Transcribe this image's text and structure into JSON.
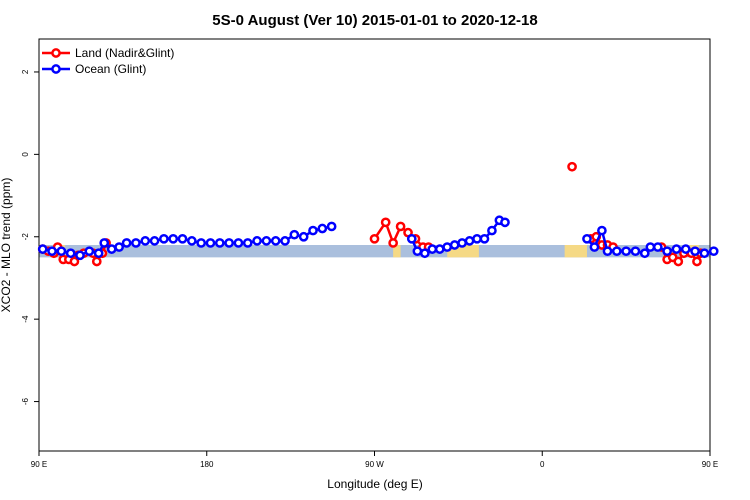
{
  "chart_data": {
    "type": "line",
    "title": "5S-0 August (Ver 10)   2015-01-01 to 2020-12-18",
    "xlabel": "Longitude (deg E)",
    "ylabel": "XCO2 - MLO trend (ppm)",
    "xlim": [
      90,
      450
    ],
    "ylim": [
      -7.2,
      2.8
    ],
    "x_ticks": [
      {
        "value": 90,
        "label": "90 E"
      },
      {
        "value": 180,
        "label": "180"
      },
      {
        "value": 270,
        "label": "90 W"
      },
      {
        "value": 360,
        "label": "0"
      },
      {
        "value": 450,
        "label": "90 E"
      }
    ],
    "y_ticks": [
      {
        "value": 2,
        "label": "2"
      },
      {
        "value": 0,
        "label": "0"
      },
      {
        "value": -2,
        "label": "-2"
      },
      {
        "value": -4,
        "label": "-4"
      },
      {
        "value": -6,
        "label": "-6"
      }
    ],
    "legend_position": "top-left",
    "land_sea_band": {
      "y_range": [
        -2.5,
        -2.2
      ],
      "ocean_color": "#aabfdd",
      "land_color": "#f5d985",
      "land_ranges": [
        [
          101,
          104
        ],
        [
          280,
          284
        ],
        [
          309,
          326
        ],
        [
          372,
          384
        ],
        [
          439,
          444
        ]
      ]
    },
    "series": [
      {
        "name": "Land (Nadir&Glint)",
        "color": "#ff0000",
        "points": [
          [
            92,
            -2.3
          ],
          [
            95,
            -2.35
          ],
          [
            98,
            -2.4
          ],
          [
            100,
            -2.25
          ],
          [
            103,
            -2.55
          ],
          [
            106,
            -2.55
          ],
          [
            109,
            -2.6
          ],
          [
            111,
            -2.45
          ],
          [
            114,
            -2.4
          ],
          [
            119,
            -2.4
          ],
          [
            121,
            -2.6
          ],
          [
            124,
            -2.4
          ],
          [
            126,
            -2.15
          ],
          [
            270,
            -2.05
          ],
          [
            276,
            -1.65
          ],
          [
            280,
            -2.15
          ],
          [
            284,
            -1.75
          ],
          [
            288,
            -1.9
          ],
          [
            292,
            -2.05
          ],
          [
            296,
            -2.25
          ],
          [
            299,
            -2.25
          ],
          [
            376,
            -0.3
          ],
          [
            386,
            -2.05
          ],
          [
            389,
            -2.0
          ],
          [
            392,
            -2.2
          ],
          [
            395,
            -2.2
          ],
          [
            398,
            -2.25
          ],
          [
            424,
            -2.25
          ],
          [
            427,
            -2.55
          ],
          [
            430,
            -2.5
          ],
          [
            433,
            -2.6
          ],
          [
            436,
            -2.4
          ],
          [
            440,
            -2.4
          ],
          [
            443,
            -2.6
          ],
          [
            445,
            -2.4
          ]
        ]
      },
      {
        "name": "Ocean (Glint)",
        "color": "#0000ff",
        "points": [
          [
            92,
            -2.3
          ],
          [
            97,
            -2.35
          ],
          [
            102,
            -2.35
          ],
          [
            107,
            -2.4
          ],
          [
            112,
            -2.45
          ],
          [
            117,
            -2.35
          ],
          [
            122,
            -2.4
          ],
          [
            125,
            -2.15
          ],
          [
            129,
            -2.3
          ],
          [
            133,
            -2.25
          ],
          [
            137,
            -2.15
          ],
          [
            142,
            -2.15
          ],
          [
            147,
            -2.1
          ],
          [
            152,
            -2.1
          ],
          [
            157,
            -2.05
          ],
          [
            162,
            -2.05
          ],
          [
            167,
            -2.05
          ],
          [
            172,
            -2.1
          ],
          [
            177,
            -2.15
          ],
          [
            182,
            -2.15
          ],
          [
            187,
            -2.15
          ],
          [
            192,
            -2.15
          ],
          [
            197,
            -2.15
          ],
          [
            202,
            -2.15
          ],
          [
            207,
            -2.1
          ],
          [
            212,
            -2.1
          ],
          [
            217,
            -2.1
          ],
          [
            222,
            -2.1
          ],
          [
            227,
            -1.95
          ],
          [
            232,
            -2.0
          ],
          [
            237,
            -1.85
          ],
          [
            242,
            -1.8
          ],
          [
            247,
            -1.75
          ],
          [
            290,
            -2.05
          ],
          [
            293,
            -2.35
          ],
          [
            297,
            -2.4
          ],
          [
            301,
            -2.3
          ],
          [
            305,
            -2.3
          ],
          [
            309,
            -2.25
          ],
          [
            313,
            -2.2
          ],
          [
            317,
            -2.15
          ],
          [
            321,
            -2.1
          ],
          [
            325,
            -2.05
          ],
          [
            329,
            -2.05
          ],
          [
            333,
            -1.85
          ],
          [
            337,
            -1.6
          ],
          [
            340,
            -1.65
          ],
          [
            384,
            -2.05
          ],
          [
            388,
            -2.25
          ],
          [
            392,
            -1.85
          ],
          [
            395,
            -2.35
          ],
          [
            400,
            -2.35
          ],
          [
            405,
            -2.35
          ],
          [
            410,
            -2.35
          ],
          [
            415,
            -2.4
          ],
          [
            418,
            -2.25
          ],
          [
            422,
            -2.25
          ],
          [
            427,
            -2.35
          ],
          [
            432,
            -2.3
          ],
          [
            437,
            -2.3
          ],
          [
            442,
            -2.35
          ],
          [
            447,
            -2.4
          ],
          [
            452,
            -2.35
          ]
        ]
      }
    ]
  }
}
